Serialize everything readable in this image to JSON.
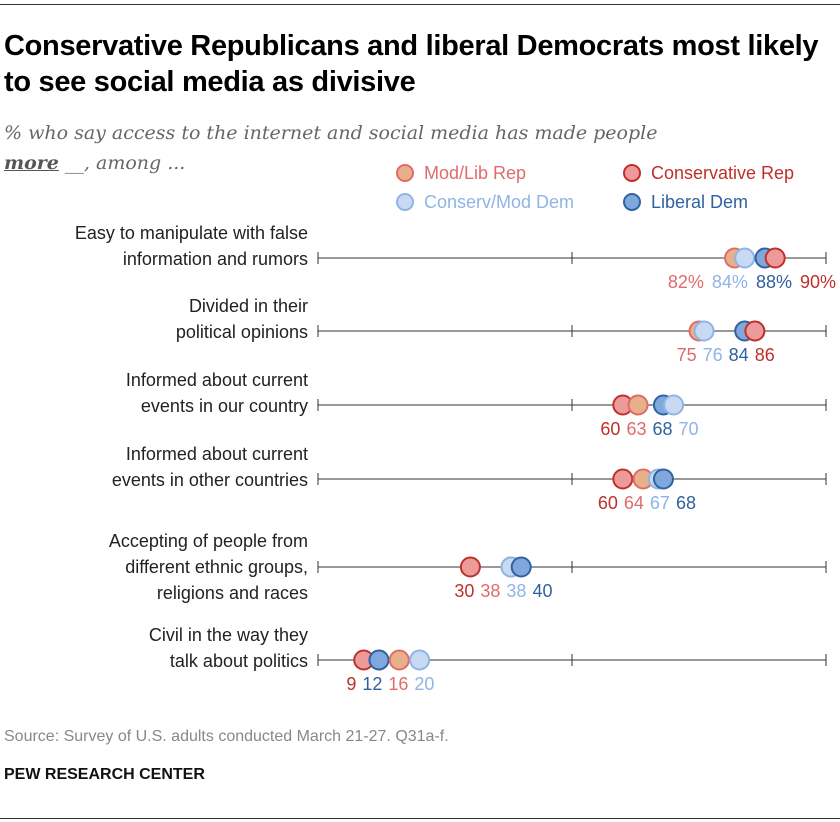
{
  "title": "Conservative Republicans and liberal Democrats most likely to see social media as divisive",
  "subtitle": {
    "before": "% who say access to the internet and social media has made people ",
    "emph": "more",
    "after": " __, among ..."
  },
  "source": "Source: Survey of U.S. adults conducted March 21-27. Q31a-f.",
  "org": "PEW RESEARCH CENTER",
  "chart_data": {
    "type": "dot",
    "xlim": [
      0,
      100
    ],
    "grid": false,
    "legend_placement": "top-right",
    "categories": [
      [
        "Easy to manipulate with false",
        "information and rumors"
      ],
      [
        "Divided in their",
        "political opinions"
      ],
      [
        "Informed about current",
        "events in our country"
      ],
      [
        "Informed about current",
        "events in other countries"
      ],
      [
        "Accepting of people from",
        "different ethnic groups,",
        "religions and races"
      ],
      [
        "Civil in the way they",
        "talk about politics"
      ]
    ],
    "first_row_percent_suffix": true,
    "series": [
      {
        "name": "Mod/Lib Rep",
        "fill": "#e8b08a",
        "stroke": "#e06b6b",
        "text": "#e06b6b",
        "values": [
          82,
          75,
          63,
          64,
          38,
          16
        ]
      },
      {
        "name": "Conservative Rep",
        "fill": "#ec9a9a",
        "stroke": "#c0302b",
        "text": "#c0302b",
        "values": [
          90,
          86,
          60,
          60,
          30,
          9
        ]
      },
      {
        "name": "Conserv/Mod Dem",
        "fill": "#c8daf2",
        "stroke": "#8fb4e6",
        "text": "#8fb4e6",
        "values": [
          84,
          76,
          70,
          67,
          38,
          20
        ]
      },
      {
        "name": "Liberal Dem",
        "fill": "#80a8dc",
        "stroke": "#2f62a0",
        "text": "#2f62a0",
        "values": [
          88,
          84,
          68,
          68,
          40,
          12
        ]
      }
    ]
  }
}
